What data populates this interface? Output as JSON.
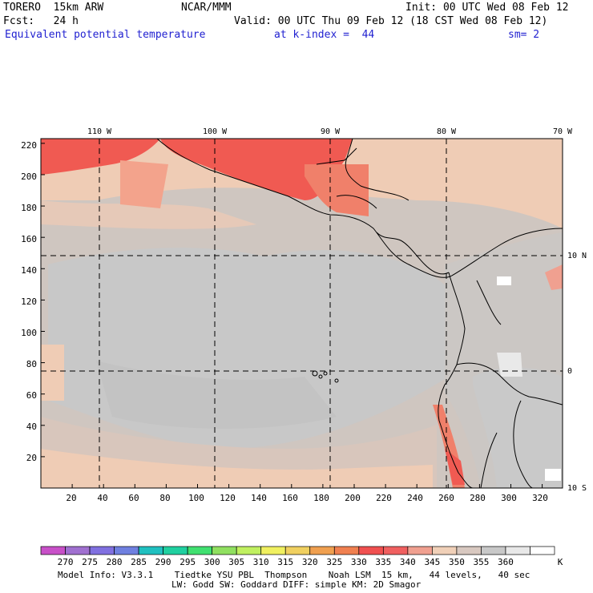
{
  "header": {
    "model": "TORERO  15km ARW",
    "center": "NCAR/MMM",
    "init": "Init: 00 UTC Wed 08 Feb 12",
    "fcst": "Fcst:   24 h",
    "valid": "Valid: 00 UTC Thu 09 Feb 12 (18 CST Wed 08 Feb 12)",
    "field": "Equivalent potential temperature",
    "level": "at k-index =  44",
    "smoothing": "sm= 2"
  },
  "map": {
    "longitude_labels": [
      "110 W",
      "100 W",
      "90 W",
      "80 W",
      "70 W"
    ],
    "latitude_labels": [
      "10 N",
      "0",
      "10 S"
    ],
    "y_grid_labels": [
      "220",
      "200",
      "180",
      "160",
      "140",
      "120",
      "100",
      "80",
      "60",
      "40",
      "20"
    ],
    "x_grid_labels": [
      "20",
      "40",
      "60",
      "80",
      "100",
      "120",
      "140",
      "160",
      "180",
      "200",
      "220",
      "240",
      "260",
      "280",
      "300",
      "320"
    ],
    "x_grid_values": [
      20,
      40,
      60,
      80,
      100,
      120,
      140,
      160,
      180,
      200,
      220,
      240,
      260,
      280,
      300,
      320
    ],
    "y_grid_values": [
      220,
      200,
      180,
      160,
      140,
      120,
      100,
      80,
      60,
      40,
      20
    ]
  },
  "colorbar": {
    "labels": [
      "270",
      "275",
      "280",
      "285",
      "290",
      "295",
      "300",
      "305",
      "310",
      "315",
      "320",
      "325",
      "330",
      "335",
      "340",
      "345",
      "350",
      "355",
      "360"
    ],
    "unit": "K",
    "colors": [
      "#c850c8",
      "#a070d0",
      "#8070e0",
      "#6f80e0",
      "#20c0c0",
      "#20d0a0",
      "#40e070",
      "#90e060",
      "#c0f060",
      "#f0f060",
      "#f0d060",
      "#f0a050",
      "#f08050",
      "#f05050",
      "#f06060",
      "#f0a090",
      "#f0d0b8",
      "#d8c8c0",
      "#c8c8c8",
      "#e8e8e8",
      "#ffffff"
    ]
  },
  "footer": {
    "line1": "Model Info: V3.3.1    Tiedtke YSU PBL  Thompson    Noah LSM  15 km,   44 levels,   40 sec",
    "line2": "LW: Godd SW: Goddard DIFF: simple KM: 2D Smagor"
  }
}
